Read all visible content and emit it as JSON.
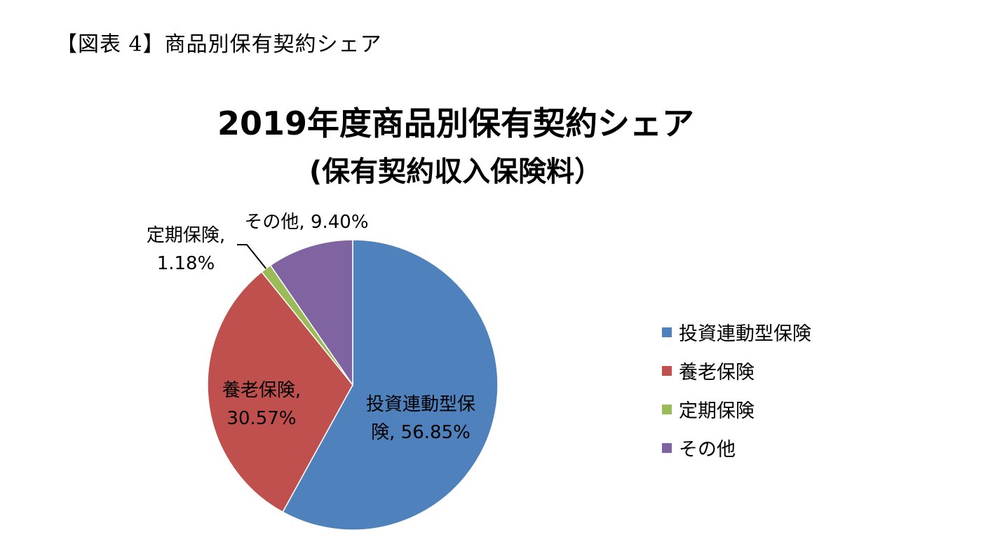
{
  "caption": "【図表 4】商品別保有契約シェア",
  "chart_data": {
    "type": "pie",
    "title": "2019年度商品別保有契約シェア",
    "subtitle": "(保有契約収入保険料）",
    "categories": [
      "投資連動型保険",
      "養老保険",
      "定期保険",
      "その他"
    ],
    "values": [
      56.85,
      30.57,
      1.18,
      9.4
    ],
    "data_labels": [
      [
        "投資連動型保",
        "険, 56.85%"
      ],
      [
        "養老保険,",
        "30.57%"
      ],
      [
        "定期保険,",
        "1.18%"
      ],
      [
        "その他, 9.40%"
      ]
    ],
    "colors": [
      "#4f81bd",
      "#c0504d",
      "#9bbb59",
      "#8064a2"
    ],
    "legend": "right",
    "start_angle": "12 o'clock",
    "direction": "clockwise"
  }
}
